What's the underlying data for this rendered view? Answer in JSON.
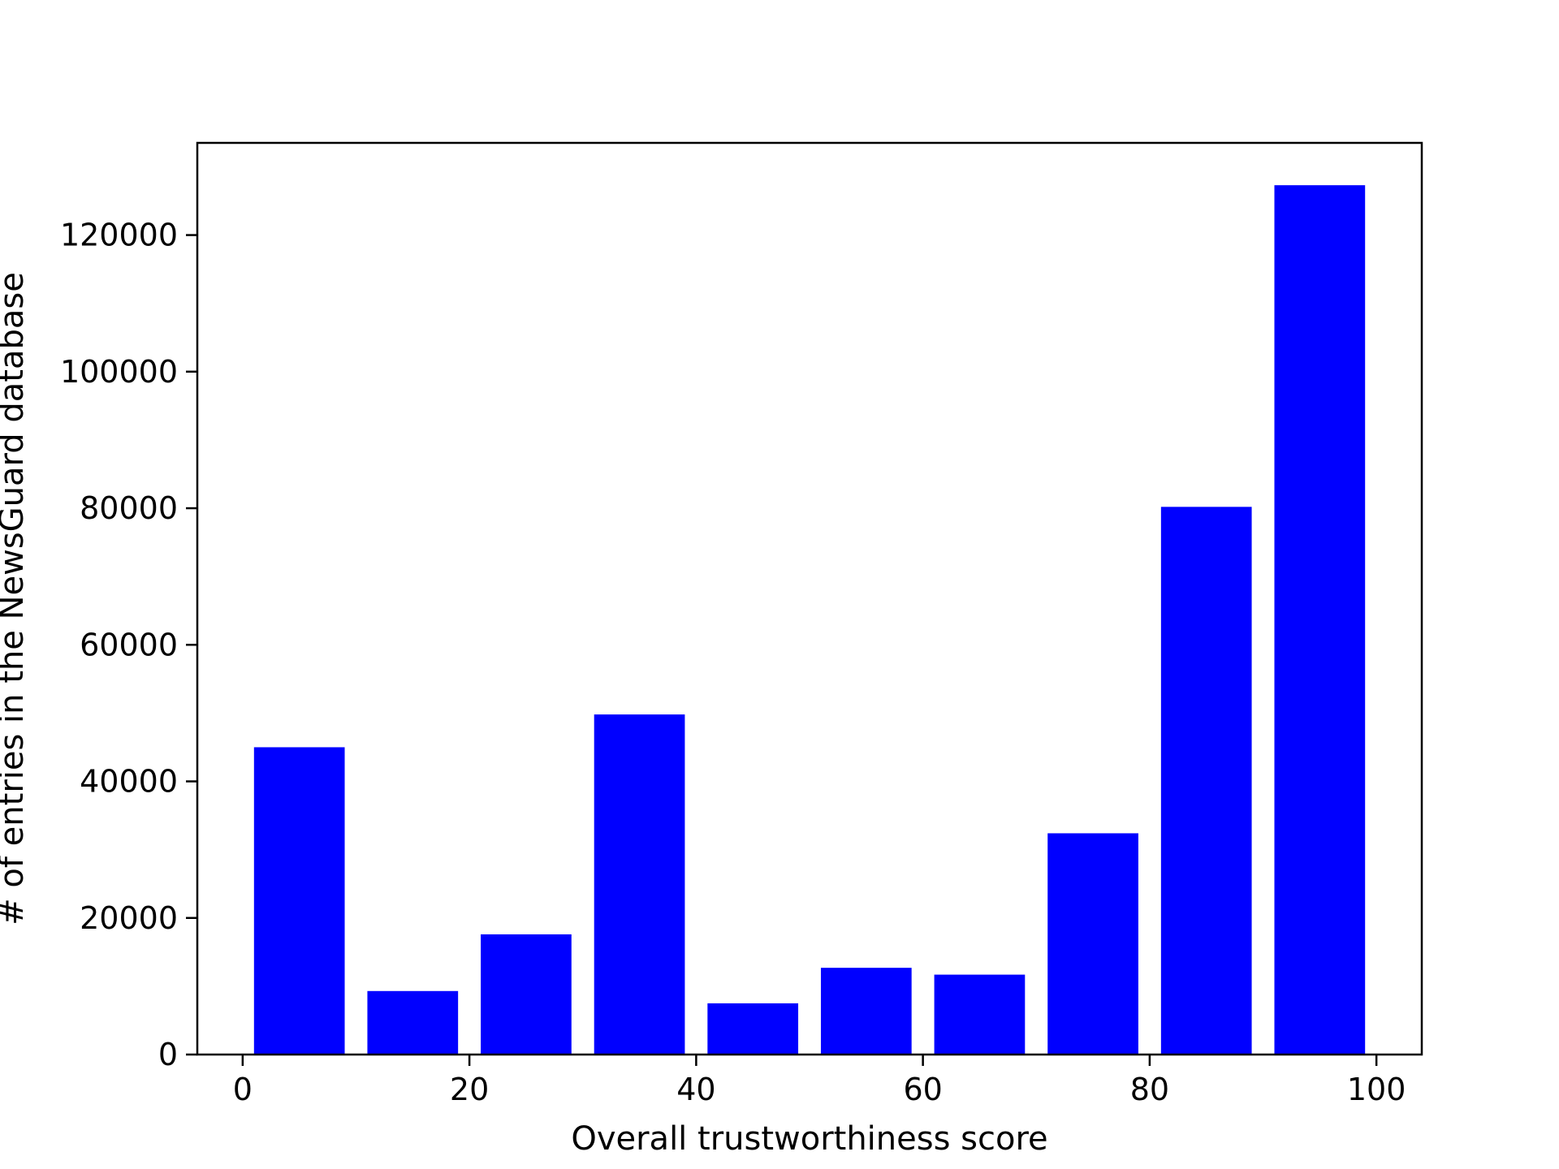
{
  "chart_data": {
    "type": "bar",
    "xlabel": "Overall trustworthiness score",
    "ylabel": "# of entries in the NewsGuard database",
    "xlim": [
      -4,
      104
    ],
    "ylim": [
      0,
      133500
    ],
    "xticks": [
      0,
      20,
      40,
      60,
      80,
      100
    ],
    "yticks": [
      0,
      20000,
      40000,
      60000,
      80000,
      100000,
      120000
    ],
    "bar_width": 8,
    "bars": [
      {
        "x": 5,
        "value": 45000
      },
      {
        "x": 15,
        "value": 9300
      },
      {
        "x": 25,
        "value": 17600
      },
      {
        "x": 35,
        "value": 49800
      },
      {
        "x": 45,
        "value": 7500
      },
      {
        "x": 55,
        "value": 12700
      },
      {
        "x": 65,
        "value": 11700
      },
      {
        "x": 75,
        "value": 32400
      },
      {
        "x": 85,
        "value": 80200
      },
      {
        "x": 95,
        "value": 127300
      }
    ],
    "bar_color": "#0000ff",
    "grid": false,
    "legend": "none"
  }
}
